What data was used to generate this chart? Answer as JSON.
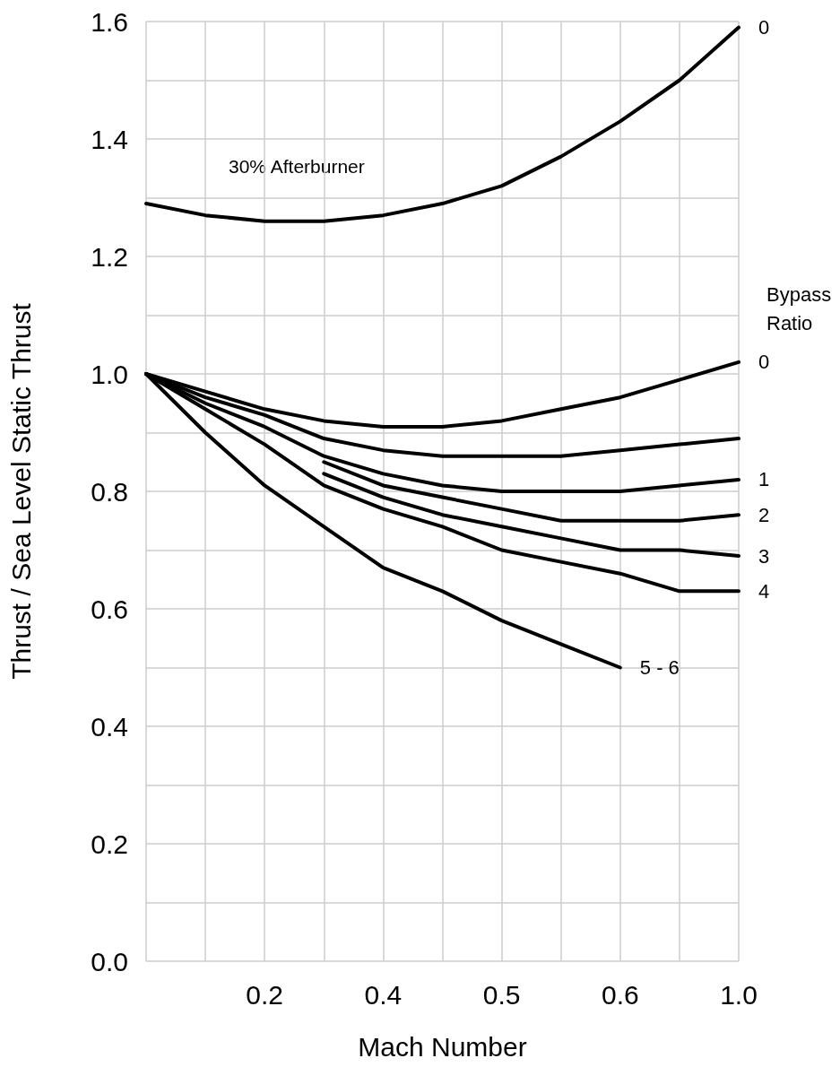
{
  "chart_data": {
    "type": "line",
    "xlabel": "Mach Number",
    "ylabel": "Thrust / Sea Level Static Thrust",
    "legend_title": "Bypass Ratio",
    "annotations": [
      "30% Afterburner"
    ],
    "categories": [
      null,
      null,
      "0.2",
      null,
      "0.4",
      null,
      "0.5",
      null,
      "0.6",
      null,
      "1.0"
    ],
    "ylim": [
      0,
      1.6
    ],
    "yticks": [
      {
        "value": 0,
        "label": "0.0"
      },
      {
        "value": 0.1,
        "label": null
      },
      0.2,
      {
        "value": 0.3,
        "label": null
      },
      0.4,
      {
        "value": 0.5,
        "label": null
      },
      0.6,
      {
        "value": 0.7,
        "label": null
      },
      0.8,
      {
        "value": 0.9,
        "label": null
      },
      {
        "value": 1,
        "label": "1.0"
      },
      {
        "value": 1.1,
        "label": null
      },
      1.2,
      {
        "value": 1.3,
        "label": null
      },
      1.4,
      {
        "value": 1.5,
        "label": null
      },
      1.6
    ],
    "grid": true,
    "legend": false,
    "marker": "none",
    "line_style": "solid",
    "series": [
      {
        "name": "0",
        "color": "#000000",
        "values": [
          1.29,
          1.27,
          1.26,
          1.26,
          1.27,
          1.29,
          1.32,
          1.37,
          1.43,
          1.5,
          1.59
        ]
      },
      {
        "name": "0",
        "color": "#000000",
        "values": [
          1.0,
          0.97,
          0.94,
          0.92,
          0.91,
          0.91,
          0.92,
          0.94,
          0.96,
          0.99,
          1.02
        ]
      },
      {
        "color": "#000000",
        "values": [
          1.0,
          0.96,
          0.93,
          0.89,
          0.87,
          0.86,
          0.86,
          0.86,
          0.87,
          0.88,
          0.89
        ]
      },
      {
        "name": "1",
        "color": "#000000",
        "values": [
          1.0,
          0.95,
          0.91,
          0.86,
          0.83,
          0.81,
          0.8,
          0.8,
          0.8,
          0.81,
          0.82
        ]
      },
      {
        "name": "2",
        "color": "#000000",
        "values": [
          null,
          null,
          null,
          0.85,
          0.81,
          0.79,
          0.77,
          0.75,
          0.75,
          0.75,
          0.76
        ]
      },
      {
        "name": "3",
        "color": "#000000",
        "values": [
          null,
          null,
          null,
          0.83,
          0.79,
          0.76,
          0.74,
          0.72,
          0.7,
          0.7,
          0.69
        ]
      },
      {
        "name": "4",
        "color": "#000000",
        "values": [
          1.0,
          0.94,
          0.88,
          0.81,
          0.77,
          0.74,
          0.7,
          0.68,
          0.66,
          0.63,
          0.63
        ]
      },
      {
        "name": "5 - 6",
        "color": "#000000",
        "values": [
          1.0,
          0.9,
          0.81,
          0.74,
          0.67,
          0.63,
          0.58,
          0.54,
          0.5,
          null,
          null
        ]
      }
    ]
  }
}
